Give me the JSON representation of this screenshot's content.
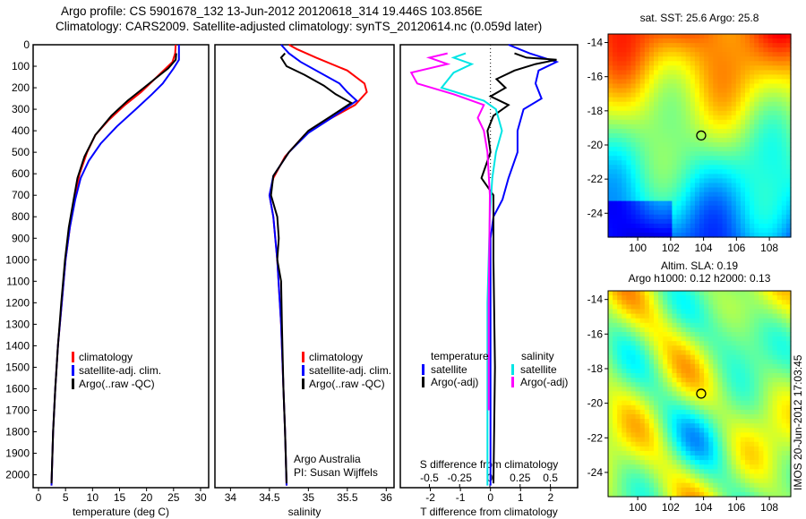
{
  "title_line1": "Argo profile: CS 5901678_132 13-Jun-2012 20120618_314 19.446S 103.856E",
  "title_line2": "Climatology: CARS2009. Satellite-adjusted climatology: synTS_20120614.nc (0.059d later)",
  "colors": {
    "climatology": "#ff0000",
    "satellite": "#0000ff",
    "argo": "#000000",
    "sal_satellite": "#00e5e5",
    "sal_argo": "#ff00ff"
  },
  "chart_data": [
    {
      "type": "line",
      "id": "temperature",
      "xlabel": "temperature (deg C)",
      "ylabel": "",
      "xlim": [
        -1,
        31.5
      ],
      "ylim": [
        0,
        2060
      ],
      "xticks": [
        0,
        5,
        10,
        15,
        20,
        25,
        30
      ],
      "yticks": [
        0,
        100,
        200,
        300,
        400,
        500,
        600,
        700,
        800,
        900,
        1000,
        1100,
        1200,
        1300,
        1400,
        1500,
        1600,
        1700,
        1800,
        1900,
        2000
      ],
      "legend": [
        "climatology",
        "satellite-adj. clim.",
        "Argo(..raw -QC)"
      ],
      "legend_position": "bottom-center",
      "series": [
        {
          "name": "climatology",
          "color": "#ff0000",
          "points": [
            [
              25.4,
              0
            ],
            [
              25.3,
              40
            ],
            [
              24.8,
              80
            ],
            [
              21.5,
              160
            ],
            [
              19,
              220
            ],
            [
              16,
              280
            ],
            [
              13,
              350
            ],
            [
              10.5,
              420
            ],
            [
              9,
              500
            ],
            [
              7.6,
              600
            ],
            [
              6.8,
              700
            ],
            [
              5.8,
              850
            ],
            [
              5,
              1000
            ],
            [
              4.3,
              1200
            ],
            [
              3.6,
              1400
            ],
            [
              3.1,
              1600
            ],
            [
              2.7,
              1800
            ],
            [
              2.4,
              2050
            ]
          ]
        },
        {
          "name": "satellite-adj. clim.",
          "color": "#0000ff",
          "points": [
            [
              26,
              0
            ],
            [
              26,
              70
            ],
            [
              25,
              110
            ],
            [
              23,
              180
            ],
            [
              21,
              230
            ],
            [
              18,
              300
            ],
            [
              14.5,
              380
            ],
            [
              11.5,
              460
            ],
            [
              9.3,
              540
            ],
            [
              7.8,
              620
            ],
            [
              6.8,
              720
            ],
            [
              5.8,
              850
            ],
            [
              5,
              1000
            ],
            [
              4.3,
              1200
            ],
            [
              3.6,
              1400
            ],
            [
              3.1,
              1600
            ],
            [
              2.7,
              1800
            ],
            [
              2.4,
              2050
            ]
          ]
        },
        {
          "name": "Argo(..raw -QC)",
          "color": "#000000",
          "points": [
            [
              25.5,
              40
            ],
            [
              25.4,
              70
            ],
            [
              24,
              110
            ],
            [
              21.5,
              160
            ],
            [
              19.5,
              200
            ],
            [
              16.5,
              260
            ],
            [
              13.5,
              330
            ],
            [
              10.5,
              420
            ],
            [
              8.5,
              520
            ],
            [
              7.2,
              620
            ],
            [
              6.5,
              720
            ],
            [
              5.6,
              850
            ],
            [
              4.9,
              1000
            ],
            [
              4.2,
              1200
            ],
            [
              3.6,
              1400
            ],
            [
              3.1,
              1600
            ],
            [
              2.7,
              1800
            ],
            [
              2.4,
              2040
            ]
          ]
        }
      ]
    },
    {
      "type": "line",
      "id": "salinity",
      "xlabel": "salinity",
      "ylabel": "",
      "xlim": [
        33.8,
        36.1
      ],
      "ylim": [
        0,
        2060
      ],
      "xticks": [
        34,
        34.5,
        35,
        35.5,
        36
      ],
      "legend": [
        "climatology",
        "satellite-adj. clim.",
        "Argo(..raw -QC)"
      ],
      "legend_position": "bottom-right",
      "annotations": [
        "Argo Australia",
        "PI: Susan Wijffels"
      ],
      "series": [
        {
          "name": "climatology",
          "color": "#ff0000",
          "points": [
            [
              34.75,
              0
            ],
            [
              34.85,
              20
            ],
            [
              35.1,
              60
            ],
            [
              35.5,
              120
            ],
            [
              35.72,
              180
            ],
            [
              35.75,
              220
            ],
            [
              35.6,
              280
            ],
            [
              35.2,
              360
            ],
            [
              34.95,
              420
            ],
            [
              34.7,
              520
            ],
            [
              34.55,
              620
            ],
            [
              34.5,
              700
            ],
            [
              34.55,
              800
            ],
            [
              34.6,
              1000
            ],
            [
              34.65,
              1300
            ],
            [
              34.68,
              1600
            ],
            [
              34.7,
              1800
            ],
            [
              34.72,
              2050
            ]
          ]
        },
        {
          "name": "satellite-adj. clim.",
          "color": "#0000ff",
          "points": [
            [
              34.65,
              0
            ],
            [
              34.75,
              40
            ],
            [
              34.9,
              80
            ],
            [
              35.2,
              140
            ],
            [
              35.4,
              180
            ],
            [
              35.5,
              220
            ],
            [
              35.62,
              260
            ],
            [
              35.3,
              340
            ],
            [
              35.0,
              410
            ],
            [
              34.75,
              500
            ],
            [
              34.55,
              610
            ],
            [
              34.5,
              700
            ],
            [
              34.55,
              800
            ],
            [
              34.6,
              1000
            ],
            [
              34.65,
              1300
            ],
            [
              34.68,
              1600
            ],
            [
              34.7,
              1800
            ],
            [
              34.72,
              2050
            ]
          ]
        },
        {
          "name": "Argo(..raw -QC)",
          "color": "#000000",
          "points": [
            [
              34.7,
              40
            ],
            [
              34.65,
              60
            ],
            [
              34.72,
              100
            ],
            [
              34.95,
              140
            ],
            [
              35.2,
              190
            ],
            [
              35.35,
              230
            ],
            [
              35.55,
              270
            ],
            [
              35.3,
              330
            ],
            [
              35.0,
              400
            ],
            [
              34.75,
              500
            ],
            [
              34.55,
              610
            ],
            [
              34.52,
              700
            ],
            [
              34.6,
              800
            ],
            [
              34.62,
              900
            ],
            [
              34.6,
              1000
            ],
            [
              34.65,
              1100
            ],
            [
              34.66,
              1300
            ],
            [
              34.68,
              1600
            ],
            [
              34.7,
              1800
            ],
            [
              34.72,
              2040
            ]
          ]
        }
      ]
    },
    {
      "type": "line",
      "id": "difference",
      "xlabel": "T difference from climatology",
      "x2label": "S difference from climatology",
      "xlim": [
        -3,
        2.9
      ],
      "x2lim": [
        -0.74,
        0.725
      ],
      "ylim": [
        0,
        2060
      ],
      "xticks": [
        -2,
        -1,
        0,
        1,
        2
      ],
      "x2ticks": [
        -0.5,
        -0.25,
        0,
        0.25,
        0.5
      ],
      "legend": {
        "temperature": "temperature",
        "salinity": "salinity",
        "t_satellite": "satellite",
        "t_argo": "Argo(-adj)",
        "s_satellite": "satellite",
        "s_argo": "Argo(-adj)"
      },
      "legend_position": "bottom-center",
      "series": [
        {
          "name": "T satellite",
          "axis": "T",
          "color": "#0000ff",
          "points": [
            [
              0.6,
              0
            ],
            [
              1.3,
              40
            ],
            [
              2.2,
              80
            ],
            [
              1.6,
              120
            ],
            [
              1.5,
              180
            ],
            [
              1.7,
              250
            ],
            [
              1.1,
              300
            ],
            [
              0.9,
              400
            ],
            [
              0.9,
              500
            ],
            [
              0.6,
              620
            ],
            [
              0.4,
              720
            ],
            [
              0.1,
              800
            ],
            [
              0,
              900
            ],
            [
              0,
              2050
            ]
          ]
        },
        {
          "name": "T Argo(-adj)",
          "axis": "T",
          "color": "#000000",
          "points": [
            [
              0.8,
              40
            ],
            [
              1.2,
              60
            ],
            [
              2.2,
              70
            ],
            [
              1.5,
              90
            ],
            [
              0.8,
              120
            ],
            [
              0.2,
              160
            ],
            [
              0.5,
              200
            ],
            [
              0,
              240
            ],
            [
              0.6,
              280
            ],
            [
              0.1,
              330
            ],
            [
              -0.1,
              400
            ],
            [
              0,
              500
            ],
            [
              -0.3,
              620
            ],
            [
              0.1,
              700
            ],
            [
              0.1,
              800
            ],
            [
              0.1,
              1000
            ],
            [
              0.15,
              1500
            ],
            [
              0.1,
              2040
            ]
          ]
        },
        {
          "name": "S satellite",
          "axis": "S",
          "color": "#00e5e5",
          "points": [
            [
              -0.2,
              40
            ],
            [
              -0.3,
              60
            ],
            [
              -0.15,
              90
            ],
            [
              -0.3,
              130
            ],
            [
              -0.4,
              200
            ],
            [
              -0.05,
              260
            ],
            [
              0.05,
              300
            ],
            [
              0.1,
              400
            ],
            [
              0.05,
              500
            ],
            [
              0.02,
              620
            ],
            [
              0,
              800
            ],
            [
              -0.02,
              1200
            ],
            [
              -0.02,
              2050
            ]
          ]
        },
        {
          "name": "S Argo(-adj)",
          "axis": "S",
          "color": "#ff00ff",
          "points": [
            [
              -0.35,
              40
            ],
            [
              -0.5,
              60
            ],
            [
              -0.35,
              90
            ],
            [
              -0.65,
              130
            ],
            [
              -0.6,
              180
            ],
            [
              -0.3,
              230
            ],
            [
              -0.05,
              280
            ],
            [
              -0.1,
              340
            ],
            [
              -0.05,
              400
            ],
            [
              -0.02,
              500
            ],
            [
              0,
              700
            ],
            [
              -0.01,
              1200
            ],
            [
              -0.01,
              1700
            ]
          ]
        }
      ]
    },
    {
      "type": "heatmap",
      "id": "sst_map",
      "title": "sat. SST: 25.6 Argo: 25.8",
      "xlim": [
        98.2,
        109.3
      ],
      "ylim": [
        -25.4,
        -13.5
      ],
      "xticks": [
        100,
        102,
        104,
        106,
        108
      ],
      "yticks": [
        -14,
        -16,
        -18,
        -20,
        -22,
        -24
      ],
      "marker": {
        "lon": 103.856,
        "lat": -19.446
      }
    },
    {
      "type": "heatmap",
      "id": "sla_map",
      "title_line1": "Altim. SLA: 0.19",
      "title_line2": "Argo h1000: 0.12 h2000: 0.13",
      "xlim": [
        98.2,
        109.3
      ],
      "ylim": [
        -25.4,
        -13.5
      ],
      "xticks": [
        100,
        102,
        104,
        106,
        108
      ],
      "yticks": [
        -14,
        -16,
        -18,
        -20,
        -22,
        -24
      ],
      "marker": {
        "lon": 103.856,
        "lat": -19.446
      }
    }
  ],
  "side_label": "IMOS 20-Jun-2012 17:03:45"
}
